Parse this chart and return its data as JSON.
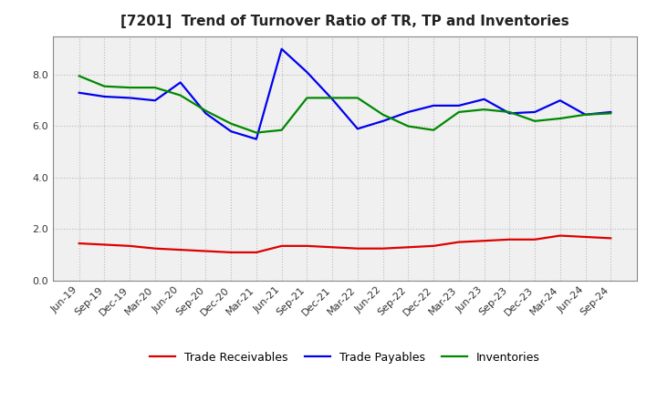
{
  "title": "[7201]  Trend of Turnover Ratio of TR, TP and Inventories",
  "x_labels": [
    "Jun-19",
    "Sep-19",
    "Dec-19",
    "Mar-20",
    "Jun-20",
    "Sep-20",
    "Dec-20",
    "Mar-21",
    "Jun-21",
    "Sep-21",
    "Dec-21",
    "Mar-22",
    "Jun-22",
    "Sep-22",
    "Dec-22",
    "Mar-23",
    "Jun-23",
    "Sep-23",
    "Dec-23",
    "Mar-24",
    "Jun-24",
    "Sep-24"
  ],
  "trade_receivables": [
    1.45,
    1.4,
    1.35,
    1.25,
    1.2,
    1.15,
    1.1,
    1.1,
    1.35,
    1.35,
    1.3,
    1.25,
    1.25,
    1.3,
    1.35,
    1.5,
    1.55,
    1.6,
    1.6,
    1.75,
    1.7,
    1.65
  ],
  "trade_payables": [
    7.3,
    7.15,
    7.1,
    7.0,
    7.7,
    6.5,
    5.8,
    5.5,
    9.0,
    8.1,
    7.05,
    5.9,
    6.2,
    6.55,
    6.8,
    6.8,
    7.05,
    6.5,
    6.55,
    7.0,
    6.45,
    6.55
  ],
  "inventories": [
    7.95,
    7.55,
    7.5,
    7.5,
    7.2,
    6.6,
    6.1,
    5.75,
    5.85,
    7.1,
    7.1,
    7.1,
    6.45,
    6.0,
    5.85,
    6.55,
    6.65,
    6.55,
    6.2,
    6.3,
    6.45,
    6.5
  ],
  "ylim": [
    0.0,
    9.5
  ],
  "yticks": [
    0.0,
    2.0,
    4.0,
    6.0,
    8.0
  ],
  "line_colors": {
    "trade_receivables": "#dd0000",
    "trade_payables": "#0000ee",
    "inventories": "#008800"
  },
  "line_width": 1.6,
  "legend_labels": [
    "Trade Receivables",
    "Trade Payables",
    "Inventories"
  ],
  "background_color": "#ffffff",
  "plot_bg_color": "#f0f0f0",
  "grid_color": "#bbbbbb",
  "title_fontsize": 11,
  "axis_fontsize": 8,
  "legend_fontsize": 9
}
